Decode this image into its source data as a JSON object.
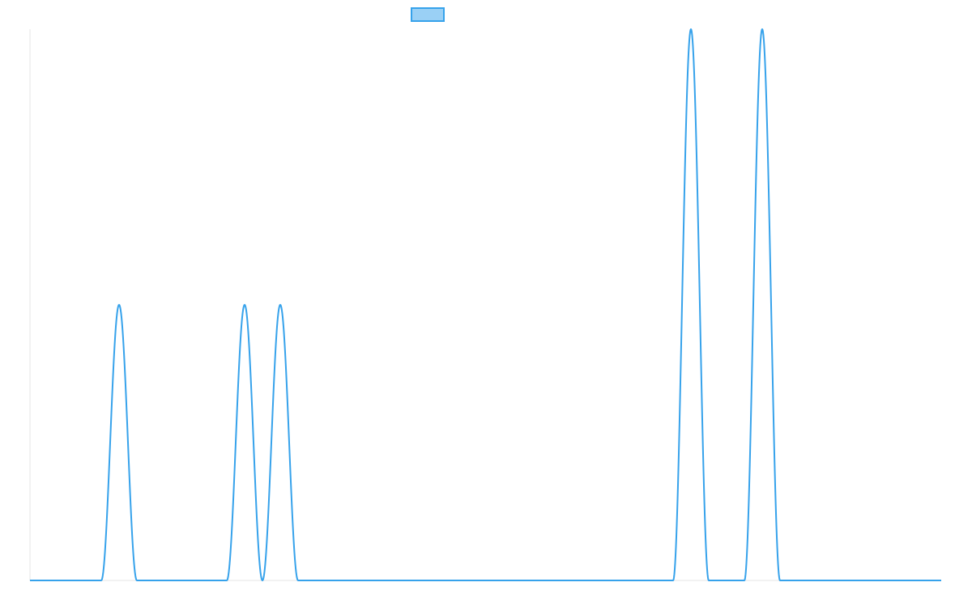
{
  "chart_data": {
    "type": "line",
    "title": "",
    "xlabel": "",
    "ylabel": "",
    "xlim": [
      0,
      1125
    ],
    "ylim": [
      0,
      2
    ],
    "grid": false,
    "legend": {
      "position": "top-center",
      "entries": [
        {
          "name": "",
          "color": "#36a2eb",
          "fill": "#9ad0f5"
        }
      ]
    },
    "series": [
      {
        "name": "",
        "color": "#36a2eb",
        "pulse_half_width": 22,
        "pulses": [
          {
            "center": 110,
            "amplitude": 1
          },
          {
            "center": 265,
            "amplitude": 1
          },
          {
            "center": 309,
            "amplitude": 1
          },
          {
            "center": 816,
            "amplitude": 2
          },
          {
            "center": 904,
            "amplitude": 2
          }
        ]
      }
    ]
  }
}
